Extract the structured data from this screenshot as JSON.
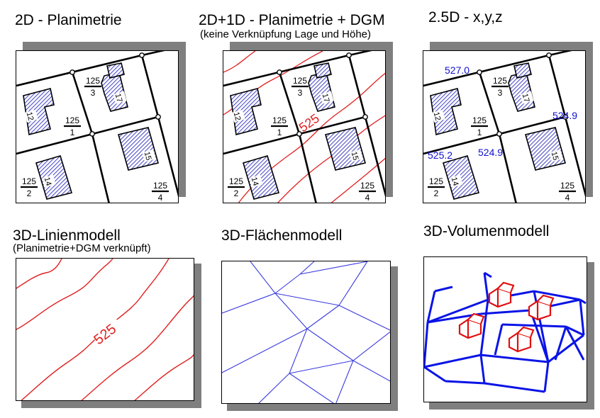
{
  "panels": {
    "p1": {
      "title": "2D - Planimetrie"
    },
    "p2": {
      "title": "2D+1D - Planimetrie  + DGM",
      "subtitle": "(keine Verknüpfung Lage und Höhe)",
      "contour_label": "525"
    },
    "p3": {
      "title": "2.5D - x,y,z",
      "heights": [
        "527.0",
        "524.9",
        "525.2",
        "524.9"
      ]
    },
    "p4": {
      "title": "3D-Linienmodell",
      "subtitle": "(Planimetrie+DGM verknüpft)",
      "contour_label": "525"
    },
    "p5": {
      "title": "3D-Flächenmodell"
    },
    "p6": {
      "title": "3D-Volumenmodell"
    }
  },
  "parcels": {
    "p3": {
      "num": "125",
      "den": "3"
    },
    "p1": {
      "num": "125",
      "den": "1"
    },
    "p2": {
      "num": "125",
      "den": "2"
    },
    "p4": {
      "num": "125",
      "den": "4"
    }
  },
  "buildings": {
    "b12": "12",
    "b17": "17",
    "b14": "14",
    "b15": "15"
  },
  "colors": {
    "contour": "#e02020",
    "mesh": "#3a3ae0",
    "volume": "#0a14e6",
    "house": "#e01010",
    "heights": "#1010d0"
  }
}
